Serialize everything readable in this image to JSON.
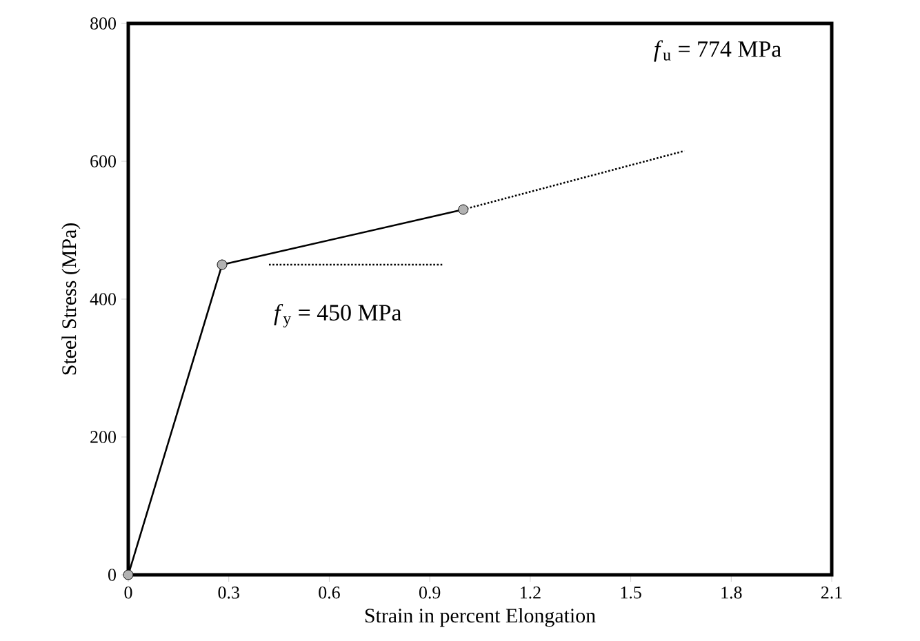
{
  "chart_data": {
    "type": "line",
    "xlabel": "Strain in percent Elongation",
    "ylabel": "Steel Stress (MPa)",
    "xlim": [
      0,
      2.1
    ],
    "xticks": [
      0,
      0.3,
      0.6,
      0.9,
      1.2,
      1.5,
      1.8,
      2.1
    ],
    "ylim": [
      0,
      800
    ],
    "yticks": [
      0,
      200,
      400,
      600,
      800
    ],
    "grid": false,
    "series": [
      {
        "x": [
          0,
          0.28,
          1.0
        ],
        "values": [
          0,
          450,
          530
        ],
        "color": "#000000",
        "marker": "circle",
        "line_style": "solid"
      },
      {
        "x": [
          1.0,
          1.66
        ],
        "values": [
          530,
          615
        ],
        "color": "#000000",
        "marker": "none",
        "line_style": "dotted"
      },
      {
        "x": [
          0.42,
          0.94
        ],
        "values": [
          450,
          450
        ],
        "color": "#000000",
        "marker": "none",
        "line_style": "dotted"
      }
    ],
    "annotations": [
      "*f*$_{y}$ = 450 MPa",
      "*f*$_{u}$ = 774 MPa"
    ]
  }
}
